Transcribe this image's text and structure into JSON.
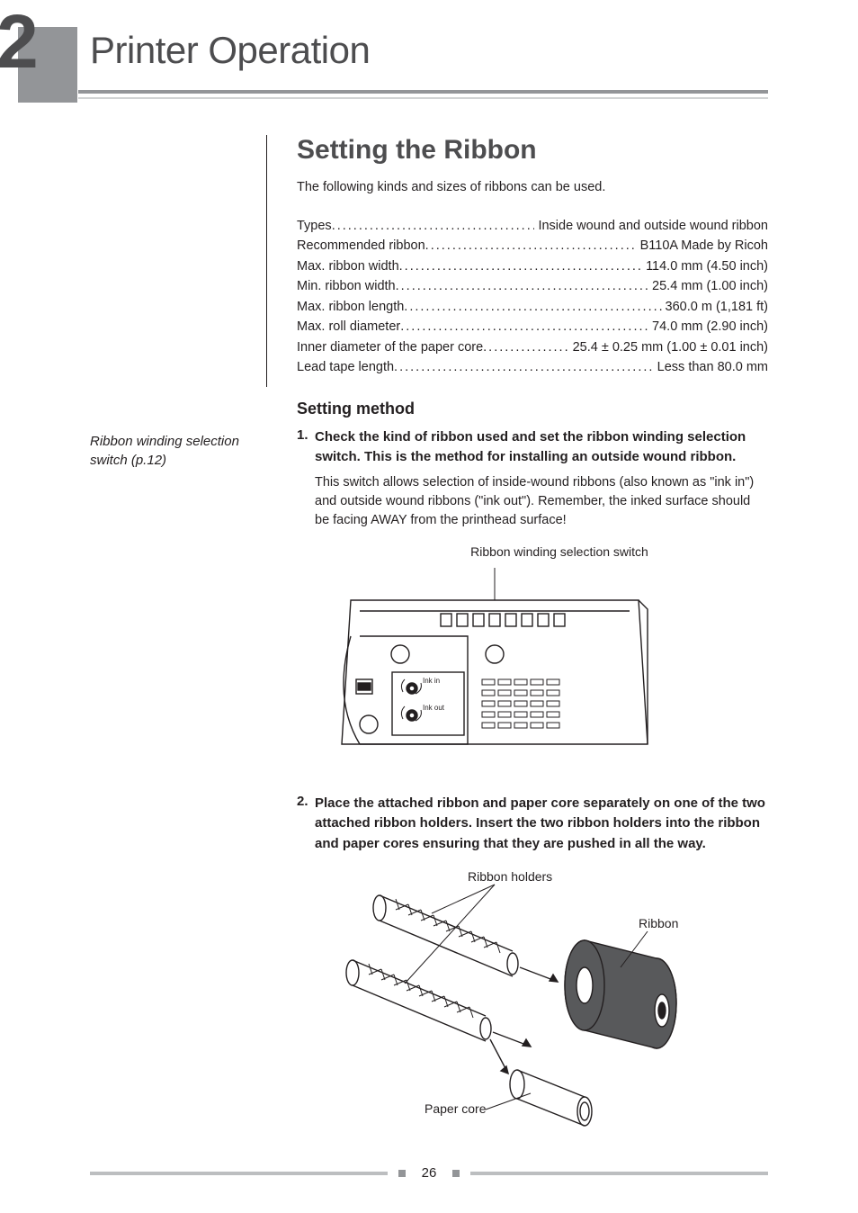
{
  "chapter": {
    "number": "2",
    "title": "Printer Operation"
  },
  "section": {
    "title": "Setting the Ribbon",
    "intro": "The following kinds and sizes of ribbons can be used."
  },
  "specs": [
    {
      "label": "Types",
      "value": "Inside wound and outside wound ribbon"
    },
    {
      "label": "Recommended ribbon",
      "value": "B110A    Made by Ricoh"
    },
    {
      "label": "Max. ribbon width",
      "value": "114.0 mm (4.50 inch)"
    },
    {
      "label": "Min. ribbon width",
      "value": "25.4 mm (1.00 inch)"
    },
    {
      "label": "Max. ribbon length",
      "value": "360.0 m (1,181 ft)"
    },
    {
      "label": "Max. roll diameter",
      "value": "74.0 mm (2.90 inch)"
    },
    {
      "label": "Inner diameter of the paper core",
      "value": "25.4 ± 0.25 mm (1.00 ± 0.01 inch)"
    },
    {
      "label": "Lead tape length",
      "value": "Less than 80.0 mm"
    }
  ],
  "subsection": {
    "title": "Setting method"
  },
  "sidebar_note": "Ribbon winding selection switch (p.12)",
  "steps": [
    {
      "num": "1.",
      "text": "Check the kind of ribbon used and set the ribbon winding selection switch. This is the method for installing an outside wound ribbon.",
      "detail": "This switch allows selection of inside-wound ribbons (also known as \"ink in\") and outside wound ribbons (\"ink out\").  Remember, the inked surface should be facing AWAY from the printhead surface!"
    },
    {
      "num": "2.",
      "text": "Place the attached ribbon and paper core separately on one of the two attached ribbon holders. Insert the two ribbon holders into the ribbon and paper cores ensuring that they are pushed in all the way."
    }
  ],
  "figure1": {
    "caption": "Ribbon winding selection switch",
    "labels": {
      "ink_in": "Ink in",
      "ink_out": "Ink out"
    },
    "colors": {
      "stroke": "#231f20",
      "fill_none": "none"
    }
  },
  "figure2": {
    "labels": {
      "ribbon_holders": "Ribbon holders",
      "ribbon": "Ribbon",
      "paper_core": "Paper core"
    },
    "colors": {
      "stroke": "#231f20",
      "ribbon_fill": "#58595b",
      "ribbon_dark": "#231f20"
    }
  },
  "page_number": "26",
  "colors": {
    "chapter_band": "#939598",
    "chapter_text": "#4d4d4f",
    "rule_light": "#d1d3d4",
    "rule_footer": "#bcbec0",
    "text": "#231f20"
  }
}
